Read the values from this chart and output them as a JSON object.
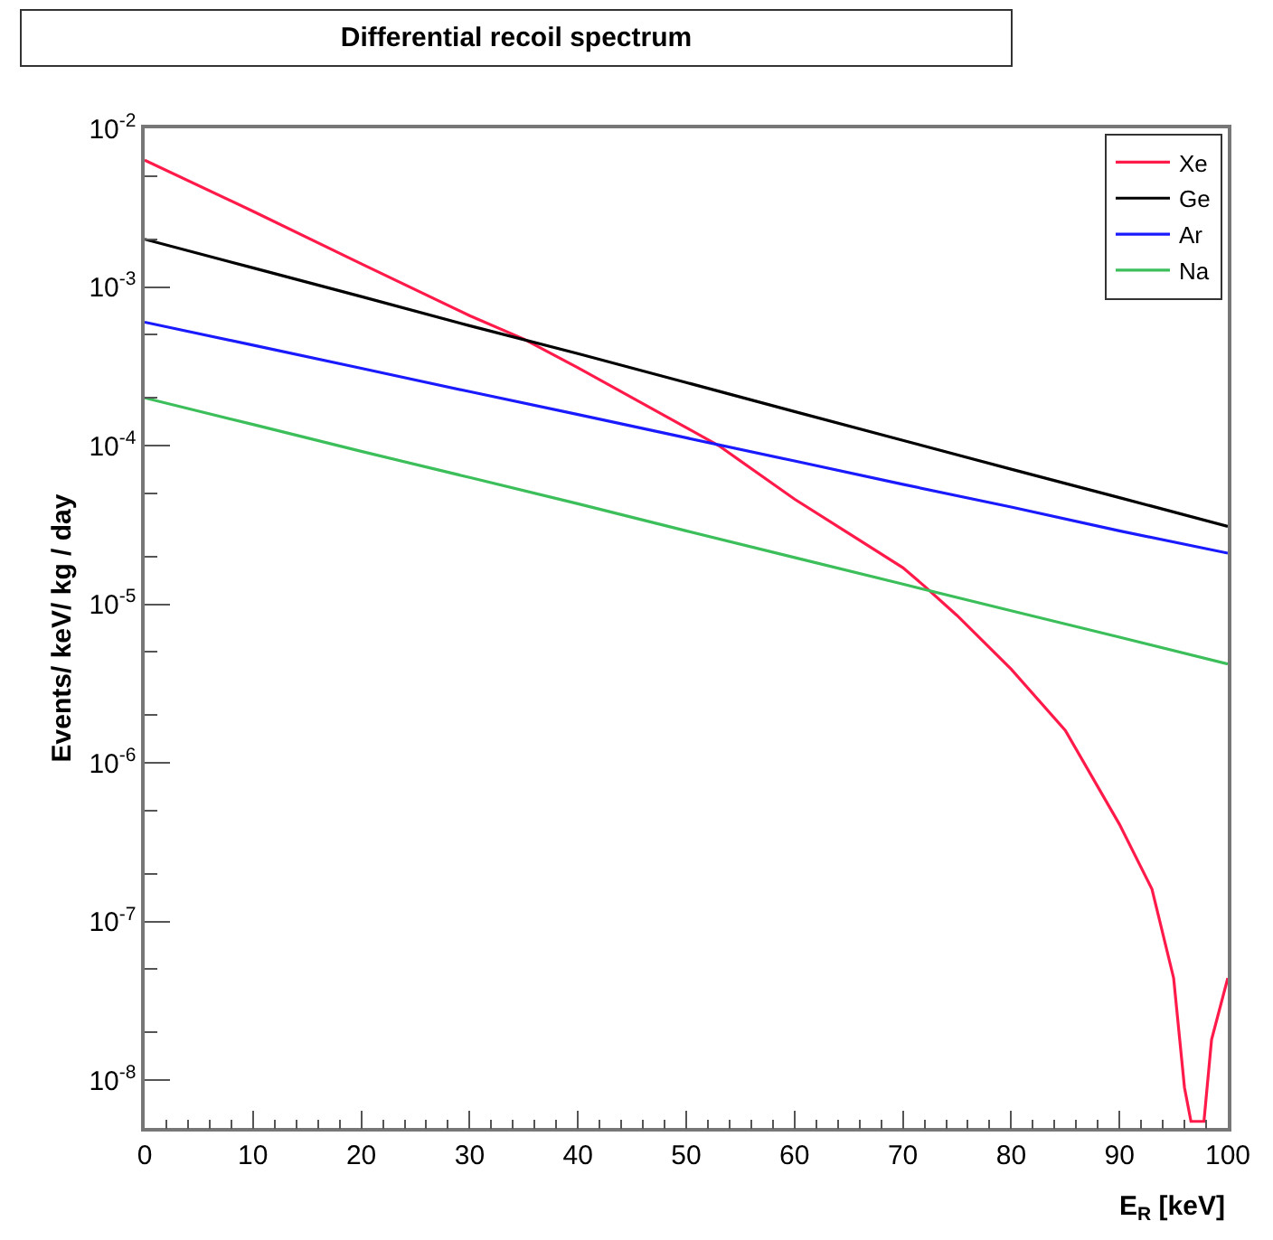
{
  "chart_data": {
    "type": "line",
    "title": "Differential recoil spectrum",
    "xlabel": "E$_{R}$ [keV]",
    "ylabel": "Events/ keV/ kg / day",
    "log": "y",
    "legend": "top right",
    "marker": "none",
    "line_style": "solid",
    "xlim": [
      0,
      100
    ],
    "xticks": [
      0,
      10,
      20,
      30,
      40,
      50,
      60,
      70,
      80,
      90,
      100
    ],
    "ylim": [
      5e-09,
      0.01
    ],
    "yticks": [
      {
        "value": 1e-08,
        "label": "10$^{-8}$"
      },
      {
        "value": 1e-07,
        "label": "10$^{-7}$"
      },
      {
        "value": 1e-06,
        "label": "10$^{-6}$"
      },
      {
        "value": 1e-05,
        "label": "10$^{-5}$"
      },
      {
        "value": 0.0001,
        "label": "10$^{-4}$"
      },
      {
        "value": 0.001,
        "label": "10$^{-3}$"
      },
      {
        "value": 0.01,
        "label": "10$^{-2}$"
      }
    ],
    "series": [
      {
        "name": "Xe",
        "color": "#ff1a4a",
        "x": [
          0,
          10,
          20,
          30,
          35,
          40,
          50,
          53,
          60,
          65,
          70,
          72,
          75,
          80,
          85,
          90,
          93,
          95,
          96,
          96.6,
          97.8,
          98.5,
          100
        ],
        "values": [
          0.0063,
          0.003,
          0.0014,
          0.00066,
          0.00047,
          0.00031,
          0.00013,
          0.0001,
          4.6e-05,
          2.8e-05,
          1.7e-05,
          1.3e-05,
          8.5e-06,
          3.9e-06,
          1.6e-06,
          4.1e-07,
          1.6e-07,
          4.4e-08,
          9e-09,
          5.5e-09,
          5.5e-09,
          1.8e-08,
          4.4e-08
        ]
      },
      {
        "name": "Ge",
        "color": "#000000",
        "x": [
          0,
          10,
          20,
          30,
          40,
          50,
          60,
          70,
          80,
          90,
          100
        ],
        "values": [
          0.002,
          0.00132,
          0.00087,
          0.00057,
          0.00038,
          0.00025,
          0.000164,
          0.000108,
          7.1e-05,
          4.7e-05,
          3.1e-05
        ]
      },
      {
        "name": "Ar",
        "color": "#1a1aff",
        "x": [
          0,
          10,
          20,
          30,
          40,
          50,
          60,
          70,
          80,
          90,
          100
        ],
        "values": [
          0.0006,
          0.00043,
          0.000307,
          0.000219,
          0.000157,
          0.000112,
          8e-05,
          5.7e-05,
          4.1e-05,
          2.9e-05,
          2.1e-05
        ]
      },
      {
        "name": "Na",
        "color": "#3cbf5a",
        "x": [
          0,
          10,
          20,
          30,
          40,
          50,
          60,
          70,
          80,
          90,
          100
        ],
        "values": [
          0.0002,
          0.000136,
          9.2e-05,
          6.3e-05,
          4.3e-05,
          2.9e-05,
          1.97e-05,
          1.34e-05,
          9.1e-06,
          6.2e-06,
          4.2e-06
        ]
      }
    ]
  }
}
